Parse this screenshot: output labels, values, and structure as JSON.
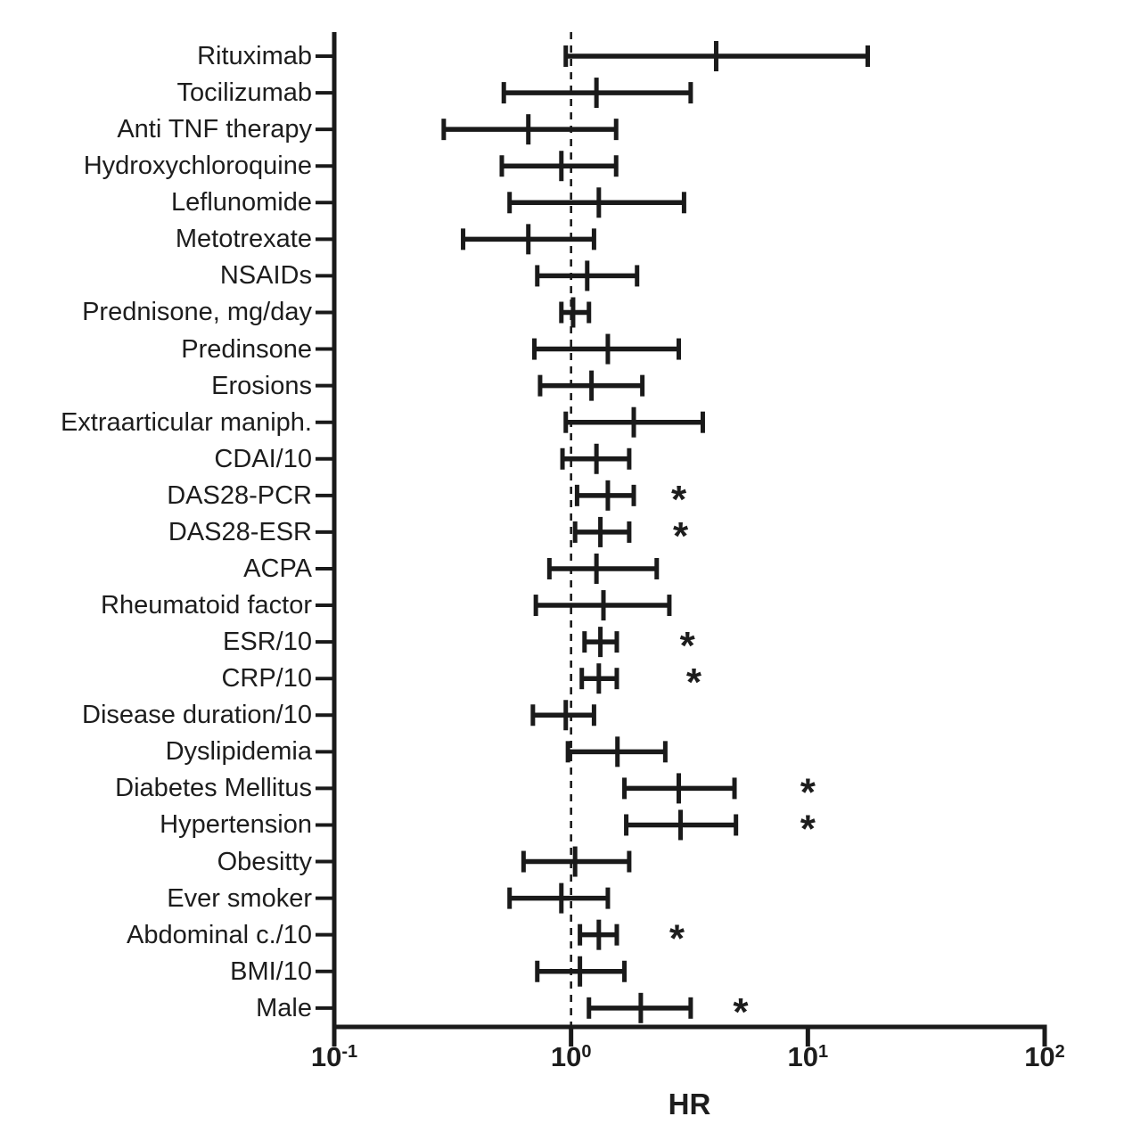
{
  "colors": {
    "line": "#1a1a1a",
    "text": "#1d1d1d",
    "background": "#ffffff"
  },
  "chart_data": {
    "type": "scatter",
    "subtype": "forest-plot",
    "title": "",
    "xlabel": "HR",
    "x_scale": "log10",
    "xlim": [
      0.1,
      100
    ],
    "reference_line": 1.0,
    "grid": false,
    "significance_marker": "*",
    "x_ticks": [
      {
        "value": 0.1,
        "base": "10",
        "exp": "-1"
      },
      {
        "value": 1,
        "base": "10",
        "exp": "0"
      },
      {
        "value": 10,
        "base": "10",
        "exp": "1"
      },
      {
        "value": 100,
        "base": "10",
        "exp": "2"
      }
    ],
    "rows": [
      {
        "label": "Rituximab",
        "hr": 4.1,
        "ci_low": 0.95,
        "ci_high": 17.9,
        "significant": false,
        "asterisk_at": null
      },
      {
        "label": "Tocilizumab",
        "hr": 1.28,
        "ci_low": 0.52,
        "ci_high": 3.2,
        "significant": false,
        "asterisk_at": null
      },
      {
        "label": "Anti TNF therapy",
        "hr": 0.66,
        "ci_low": 0.29,
        "ci_high": 1.55,
        "significant": false,
        "asterisk_at": null
      },
      {
        "label": "Hydroxychloroquine",
        "hr": 0.91,
        "ci_low": 0.51,
        "ci_high": 1.55,
        "significant": false,
        "asterisk_at": null
      },
      {
        "label": "Leflunomide",
        "hr": 1.31,
        "ci_low": 0.55,
        "ci_high": 3.0,
        "significant": false,
        "asterisk_at": null
      },
      {
        "label": "Metotrexate",
        "hr": 0.66,
        "ci_low": 0.35,
        "ci_high": 1.25,
        "significant": false,
        "asterisk_at": null
      },
      {
        "label": "NSAIDs",
        "hr": 1.17,
        "ci_low": 0.72,
        "ci_high": 1.9,
        "significant": false,
        "asterisk_at": null
      },
      {
        "label": "Prednisone, mg/day",
        "hr": 1.02,
        "ci_low": 0.91,
        "ci_high": 1.19,
        "significant": false,
        "asterisk_at": null
      },
      {
        "label": "Predinsone",
        "hr": 1.43,
        "ci_low": 0.7,
        "ci_high": 2.85,
        "significant": false,
        "asterisk_at": null
      },
      {
        "label": "Erosions",
        "hr": 1.22,
        "ci_low": 0.74,
        "ci_high": 2.0,
        "significant": false,
        "asterisk_at": null
      },
      {
        "label": "Extraarticular maniph.",
        "hr": 1.84,
        "ci_low": 0.95,
        "ci_high": 3.6,
        "significant": false,
        "asterisk_at": null
      },
      {
        "label": "CDAI/10",
        "hr": 1.28,
        "ci_low": 0.92,
        "ci_high": 1.76,
        "significant": false,
        "asterisk_at": null
      },
      {
        "label": "DAS28-PCR",
        "hr": 1.43,
        "ci_low": 1.06,
        "ci_high": 1.84,
        "significant": true,
        "asterisk_at": 2.85
      },
      {
        "label": "DAS28-ESR",
        "hr": 1.33,
        "ci_low": 1.04,
        "ci_high": 1.76,
        "significant": true,
        "asterisk_at": 2.9
      },
      {
        "label": "ACPA",
        "hr": 1.28,
        "ci_low": 0.81,
        "ci_high": 2.3,
        "significant": false,
        "asterisk_at": null
      },
      {
        "label": "Rheumatoid factor",
        "hr": 1.37,
        "ci_low": 0.71,
        "ci_high": 2.6,
        "significant": false,
        "asterisk_at": null
      },
      {
        "label": "ESR/10",
        "hr": 1.33,
        "ci_low": 1.14,
        "ci_high": 1.56,
        "significant": true,
        "asterisk_at": 3.1
      },
      {
        "label": "CRP/10",
        "hr": 1.31,
        "ci_low": 1.11,
        "ci_high": 1.56,
        "significant": true,
        "asterisk_at": 3.3
      },
      {
        "label": "Disease duration/10",
        "hr": 0.95,
        "ci_low": 0.69,
        "ci_high": 1.25,
        "significant": false,
        "asterisk_at": null
      },
      {
        "label": "Dyslipidemia",
        "hr": 1.57,
        "ci_low": 0.97,
        "ci_high": 2.5,
        "significant": false,
        "asterisk_at": null
      },
      {
        "label": "Diabetes Mellitus",
        "hr": 2.85,
        "ci_low": 1.68,
        "ci_high": 4.9,
        "significant": true,
        "asterisk_at": 10
      },
      {
        "label": "Hypertension",
        "hr": 2.9,
        "ci_low": 1.71,
        "ci_high": 4.97,
        "significant": true,
        "asterisk_at": 10
      },
      {
        "label": "Obesitty",
        "hr": 1.04,
        "ci_low": 0.63,
        "ci_high": 1.76,
        "significant": false,
        "asterisk_at": null
      },
      {
        "label": "Ever smoker",
        "hr": 0.91,
        "ci_low": 0.55,
        "ci_high": 1.43,
        "significant": false,
        "asterisk_at": null
      },
      {
        "label": "Abdominal c./10",
        "hr": 1.31,
        "ci_low": 1.09,
        "ci_high": 1.56,
        "significant": true,
        "asterisk_at": 2.8
      },
      {
        "label": "BMI/10",
        "hr": 1.09,
        "ci_low": 0.72,
        "ci_high": 1.68,
        "significant": false,
        "asterisk_at": null
      },
      {
        "label": "Male",
        "hr": 1.97,
        "ci_low": 1.19,
        "ci_high": 3.2,
        "significant": true,
        "asterisk_at": 5.2
      }
    ]
  }
}
